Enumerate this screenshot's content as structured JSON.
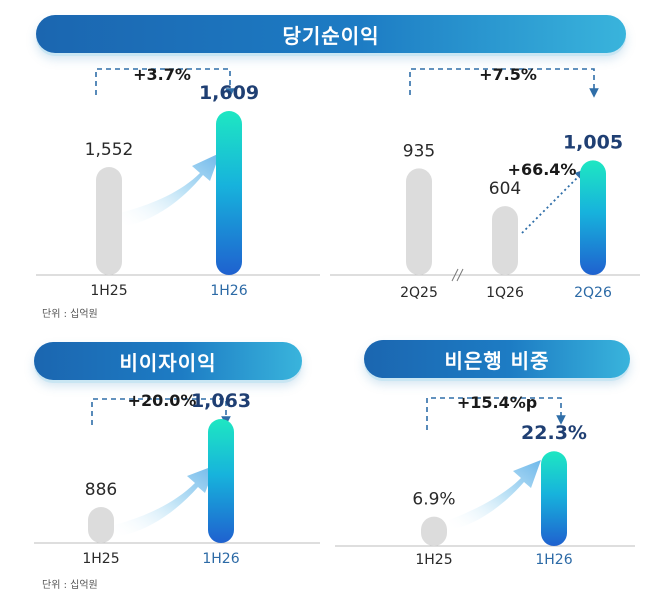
{
  "panels": [
    {
      "title": "당기순이익",
      "growth_label": "+3.7%",
      "unit": "단위 : 십억원",
      "chart_data": {
        "type": "bar",
        "title": "당기순이익",
        "categories": [
          "1H25",
          "1H26"
        ],
        "values": [
          1552,
          1609
        ],
        "value_labels": [
          "1,552",
          "1,609"
        ],
        "highlight": [
          false,
          true
        ]
      }
    },
    {
      "title": "",
      "growth_label": "+7.5%",
      "qoq_label": "+66.4%",
      "unit": "",
      "chart_data": {
        "type": "bar",
        "categories": [
          "2Q25",
          "1Q26",
          "2Q26"
        ],
        "values": [
          935,
          604,
          1005
        ],
        "value_labels": [
          "935",
          "604",
          "1,005"
        ],
        "highlight": [
          false,
          false,
          true
        ],
        "axis_break_between": [
          "2Q25",
          "1Q26"
        ]
      }
    },
    {
      "title": "비이자이익",
      "growth_label": "+20.0%",
      "unit": "단위 : 십억원",
      "chart_data": {
        "type": "bar",
        "title": "비이자이익",
        "categories": [
          "1H25",
          "1H26"
        ],
        "values": [
          886,
          1063
        ],
        "value_labels": [
          "886",
          "1,063"
        ],
        "highlight": [
          false,
          true
        ]
      }
    },
    {
      "title": "비은행 비중",
      "growth_label": "+15.4%p",
      "unit": "",
      "chart_data": {
        "type": "bar",
        "title": "비은행 비중",
        "categories": [
          "1H25",
          "1H26"
        ],
        "values": [
          6.9,
          22.3
        ],
        "value_labels": [
          "6.9%",
          "22.3%"
        ],
        "highlight": [
          false,
          true
        ]
      }
    }
  ],
  "colors": {
    "header_start": "#1b66b0",
    "header_end": "#39b4dc",
    "bar_gray": "#dcdcdc",
    "bar_top": "#1ee7c2",
    "bar_bottom": "#1f61cf",
    "value_blue": "#1f3f73",
    "dashed": "#2f6ea8"
  }
}
